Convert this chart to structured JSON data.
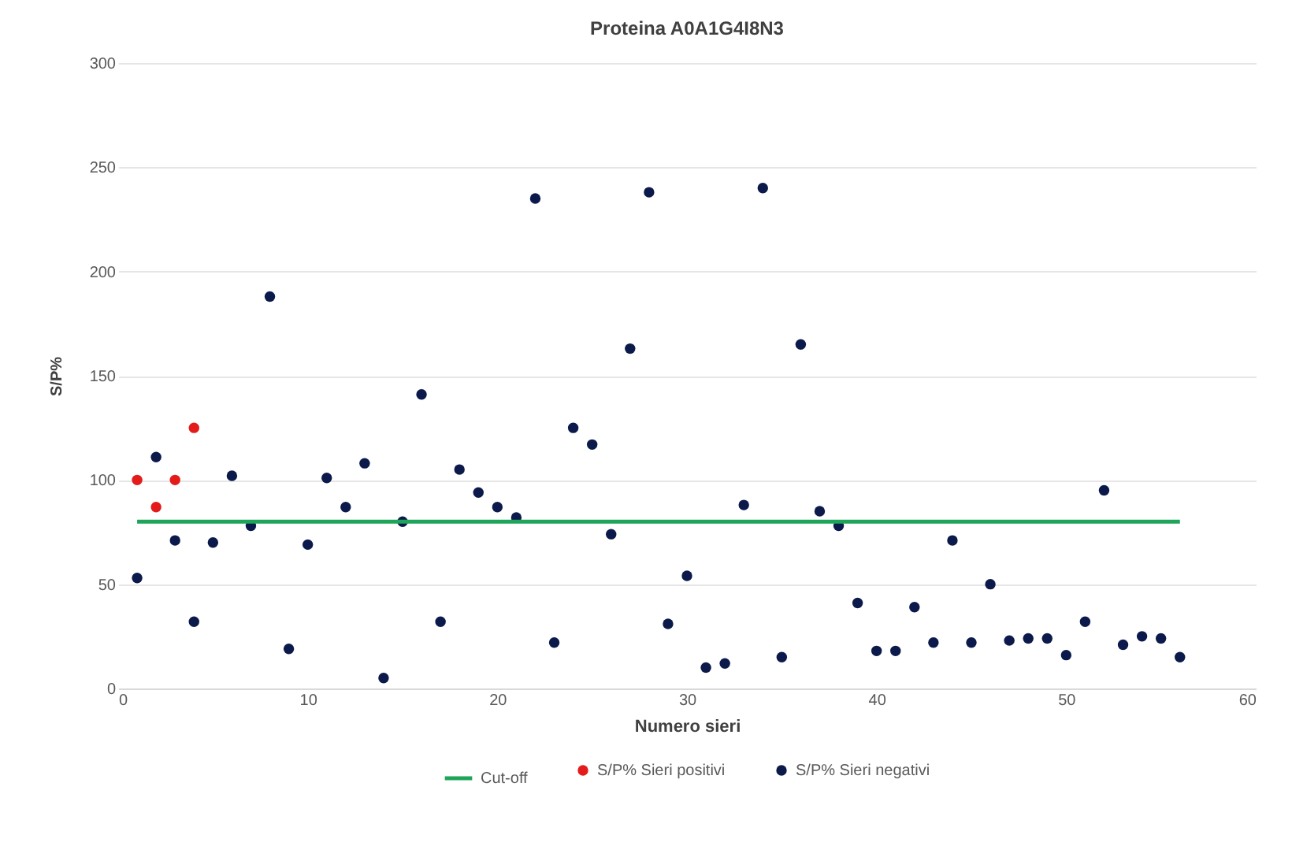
{
  "chart_data": {
    "type": "scatter",
    "title": "Proteina A0A1G4I8N3",
    "xlabel": "Numero sieri",
    "ylabel": "S/P%",
    "xlim": [
      0,
      60
    ],
    "xticks": [
      0,
      10,
      20,
      30,
      40,
      50,
      60
    ],
    "ylim": [
      0,
      300
    ],
    "yticks": [
      0,
      50,
      100,
      150,
      200,
      250,
      300
    ],
    "grid": "y",
    "legend": "bottom",
    "series": [
      {
        "name": "S/P% Sieri positivi",
        "color": "#e31b1b",
        "marker": "circle",
        "x": [
          1,
          2,
          3,
          4
        ],
        "values": [
          100,
          87,
          100,
          125
        ]
      },
      {
        "name": "S/P% Sieri negativi",
        "color": "#0b1a4a",
        "marker": "circle",
        "x": [
          1,
          2,
          3,
          4,
          5,
          6,
          7,
          8,
          9,
          10,
          11,
          12,
          13,
          14,
          15,
          16,
          17,
          18,
          19,
          20,
          21,
          22,
          23,
          24,
          25,
          26,
          27,
          28,
          29,
          30,
          31,
          32,
          33,
          34,
          35,
          36,
          37,
          38,
          39,
          40,
          41,
          42,
          43,
          44,
          45,
          46,
          47,
          48,
          49,
          50,
          51,
          52,
          53,
          54,
          55,
          56
        ],
        "values": [
          53,
          111,
          71,
          32,
          70,
          102,
          78,
          188,
          19,
          69,
          101,
          87,
          108,
          5,
          80,
          141,
          32,
          105,
          94,
          87,
          82,
          235,
          22,
          125,
          117,
          74,
          163,
          238,
          31,
          54,
          10,
          12,
          88,
          240,
          15,
          165,
          85,
          78,
          41,
          18,
          18,
          39,
          22,
          71,
          22,
          50,
          23,
          24,
          24,
          16,
          32,
          95,
          21,
          25,
          24,
          15
        ]
      },
      {
        "name": "Cut-off",
        "type": "line",
        "color": "#1fa55a",
        "marker": "none",
        "line_style": "solid",
        "x": [
          1,
          56
        ],
        "values": [
          80,
          80
        ]
      }
    ]
  }
}
